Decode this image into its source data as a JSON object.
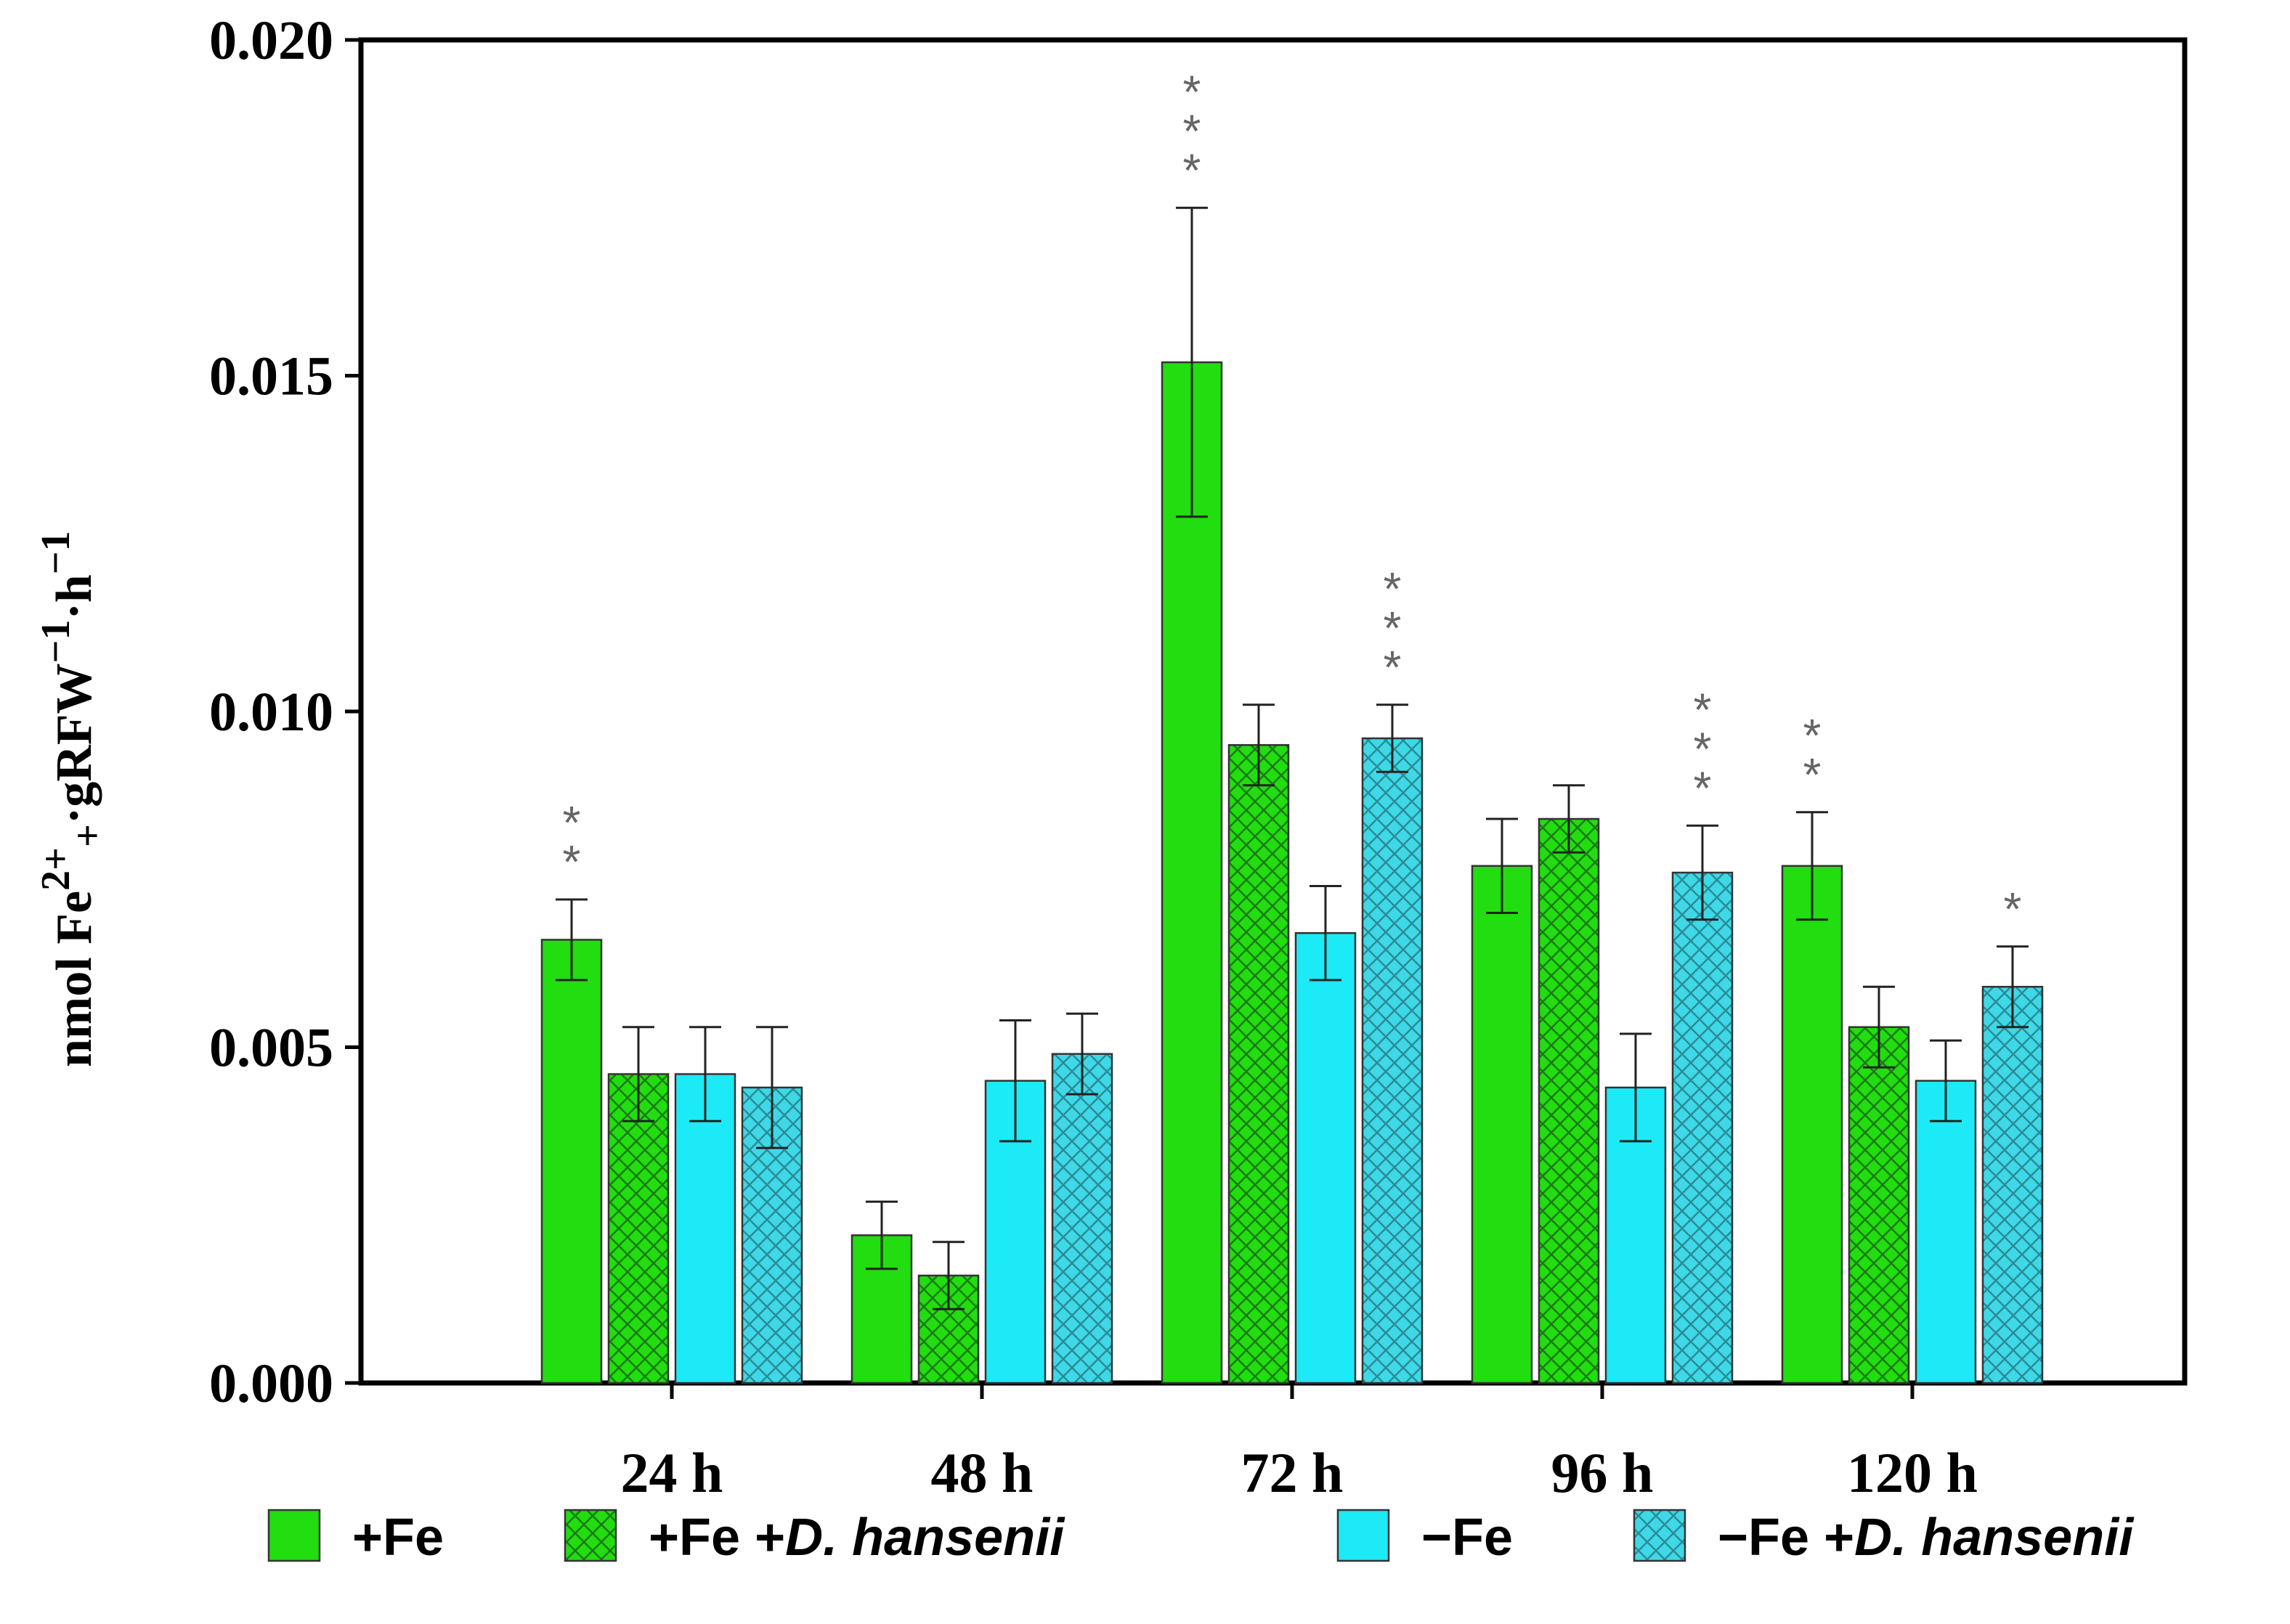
{
  "chart_data": {
    "type": "bar",
    "title": "",
    "xlabel": "",
    "ylabel": {
      "base": "nmol Fe",
      "sup1": "2+",
      "sub1": "+",
      "mid": "·gRFW",
      "sup2": "−1",
      "mid2": "·h",
      "sup3": "−1"
    },
    "ylim": [
      0,
      0.02
    ],
    "yticks": [
      "0.000",
      "0.005",
      "0.010",
      "0.015",
      "0.020"
    ],
    "ytick_values": [
      0,
      0.005,
      0.01,
      0.015,
      0.02
    ],
    "categories": [
      "24 h",
      "48 h",
      "72 h",
      "96 h",
      "120 h"
    ],
    "series": [
      {
        "name": "+Fe",
        "label_parts": [
          "+Fe"
        ],
        "color": "#22dd0f",
        "hatch": false,
        "values": [
          0.0066,
          0.0022,
          0.0152,
          0.0077,
          0.0077
        ],
        "errors": [
          0.0006,
          0.0005,
          0.0023,
          0.0007,
          0.0008
        ],
        "significance": [
          "**",
          "",
          "***",
          "",
          "**"
        ]
      },
      {
        "name": "+Fe +D. hansenii",
        "label_parts": [
          "+Fe +",
          "D. hansenii"
        ],
        "color": "#22dd0f",
        "hatch": true,
        "values": [
          0.0046,
          0.0016,
          0.0095,
          0.0084,
          0.0053
        ],
        "errors": [
          0.0007,
          0.0005,
          0.0006,
          0.0005,
          0.0006
        ],
        "significance": [
          "",
          "",
          "",
          "",
          ""
        ]
      },
      {
        "name": "−Fe",
        "label_parts": [
          "−Fe"
        ],
        "color": "#1ceaf6",
        "hatch": false,
        "values": [
          0.0046,
          0.0045,
          0.0067,
          0.0044,
          0.0045
        ],
        "errors": [
          0.0007,
          0.0009,
          0.0007,
          0.0008,
          0.0006
        ],
        "significance": [
          "",
          "",
          "",
          "",
          ""
        ]
      },
      {
        "name": "−Fe +D. hansenii",
        "label_parts": [
          "−Fe +",
          "D. hansenii"
        ],
        "color": "#3fd8e6",
        "hatch": true,
        "values": [
          0.0044,
          0.0049,
          0.0096,
          0.0076,
          0.0059
        ],
        "errors": [
          0.0009,
          0.0006,
          0.0005,
          0.0007,
          0.0006
        ],
        "significance": [
          "",
          "",
          "***",
          "***",
          "*"
        ]
      }
    ],
    "legend": "bottom"
  }
}
